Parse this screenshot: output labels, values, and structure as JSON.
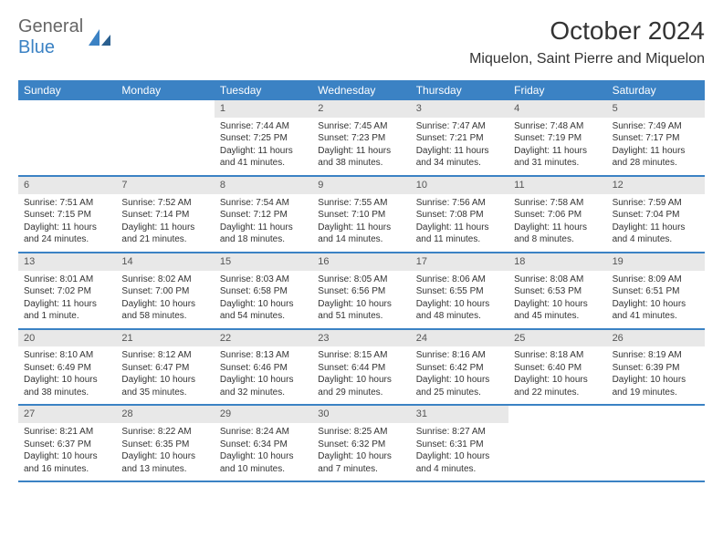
{
  "brand": {
    "part1": "General",
    "part2": "Blue",
    "accent_color": "#3b82c4"
  },
  "title": "October 2024",
  "location": "Miquelon, Saint Pierre and Miquelon",
  "header_bg": "#3b82c4",
  "day_bg": "#e8e8e8",
  "dayNames": [
    "Sunday",
    "Monday",
    "Tuesday",
    "Wednesday",
    "Thursday",
    "Friday",
    "Saturday"
  ],
  "weeks": [
    [
      null,
      null,
      {
        "n": "1",
        "sr": "Sunrise: 7:44 AM",
        "ss": "Sunset: 7:25 PM",
        "dl": "Daylight: 11 hours and 41 minutes."
      },
      {
        "n": "2",
        "sr": "Sunrise: 7:45 AM",
        "ss": "Sunset: 7:23 PM",
        "dl": "Daylight: 11 hours and 38 minutes."
      },
      {
        "n": "3",
        "sr": "Sunrise: 7:47 AM",
        "ss": "Sunset: 7:21 PM",
        "dl": "Daylight: 11 hours and 34 minutes."
      },
      {
        "n": "4",
        "sr": "Sunrise: 7:48 AM",
        "ss": "Sunset: 7:19 PM",
        "dl": "Daylight: 11 hours and 31 minutes."
      },
      {
        "n": "5",
        "sr": "Sunrise: 7:49 AM",
        "ss": "Sunset: 7:17 PM",
        "dl": "Daylight: 11 hours and 28 minutes."
      }
    ],
    [
      {
        "n": "6",
        "sr": "Sunrise: 7:51 AM",
        "ss": "Sunset: 7:15 PM",
        "dl": "Daylight: 11 hours and 24 minutes."
      },
      {
        "n": "7",
        "sr": "Sunrise: 7:52 AM",
        "ss": "Sunset: 7:14 PM",
        "dl": "Daylight: 11 hours and 21 minutes."
      },
      {
        "n": "8",
        "sr": "Sunrise: 7:54 AM",
        "ss": "Sunset: 7:12 PM",
        "dl": "Daylight: 11 hours and 18 minutes."
      },
      {
        "n": "9",
        "sr": "Sunrise: 7:55 AM",
        "ss": "Sunset: 7:10 PM",
        "dl": "Daylight: 11 hours and 14 minutes."
      },
      {
        "n": "10",
        "sr": "Sunrise: 7:56 AM",
        "ss": "Sunset: 7:08 PM",
        "dl": "Daylight: 11 hours and 11 minutes."
      },
      {
        "n": "11",
        "sr": "Sunrise: 7:58 AM",
        "ss": "Sunset: 7:06 PM",
        "dl": "Daylight: 11 hours and 8 minutes."
      },
      {
        "n": "12",
        "sr": "Sunrise: 7:59 AM",
        "ss": "Sunset: 7:04 PM",
        "dl": "Daylight: 11 hours and 4 minutes."
      }
    ],
    [
      {
        "n": "13",
        "sr": "Sunrise: 8:01 AM",
        "ss": "Sunset: 7:02 PM",
        "dl": "Daylight: 11 hours and 1 minute."
      },
      {
        "n": "14",
        "sr": "Sunrise: 8:02 AM",
        "ss": "Sunset: 7:00 PM",
        "dl": "Daylight: 10 hours and 58 minutes."
      },
      {
        "n": "15",
        "sr": "Sunrise: 8:03 AM",
        "ss": "Sunset: 6:58 PM",
        "dl": "Daylight: 10 hours and 54 minutes."
      },
      {
        "n": "16",
        "sr": "Sunrise: 8:05 AM",
        "ss": "Sunset: 6:56 PM",
        "dl": "Daylight: 10 hours and 51 minutes."
      },
      {
        "n": "17",
        "sr": "Sunrise: 8:06 AM",
        "ss": "Sunset: 6:55 PM",
        "dl": "Daylight: 10 hours and 48 minutes."
      },
      {
        "n": "18",
        "sr": "Sunrise: 8:08 AM",
        "ss": "Sunset: 6:53 PM",
        "dl": "Daylight: 10 hours and 45 minutes."
      },
      {
        "n": "19",
        "sr": "Sunrise: 8:09 AM",
        "ss": "Sunset: 6:51 PM",
        "dl": "Daylight: 10 hours and 41 minutes."
      }
    ],
    [
      {
        "n": "20",
        "sr": "Sunrise: 8:10 AM",
        "ss": "Sunset: 6:49 PM",
        "dl": "Daylight: 10 hours and 38 minutes."
      },
      {
        "n": "21",
        "sr": "Sunrise: 8:12 AM",
        "ss": "Sunset: 6:47 PM",
        "dl": "Daylight: 10 hours and 35 minutes."
      },
      {
        "n": "22",
        "sr": "Sunrise: 8:13 AM",
        "ss": "Sunset: 6:46 PM",
        "dl": "Daylight: 10 hours and 32 minutes."
      },
      {
        "n": "23",
        "sr": "Sunrise: 8:15 AM",
        "ss": "Sunset: 6:44 PM",
        "dl": "Daylight: 10 hours and 29 minutes."
      },
      {
        "n": "24",
        "sr": "Sunrise: 8:16 AM",
        "ss": "Sunset: 6:42 PM",
        "dl": "Daylight: 10 hours and 25 minutes."
      },
      {
        "n": "25",
        "sr": "Sunrise: 8:18 AM",
        "ss": "Sunset: 6:40 PM",
        "dl": "Daylight: 10 hours and 22 minutes."
      },
      {
        "n": "26",
        "sr": "Sunrise: 8:19 AM",
        "ss": "Sunset: 6:39 PM",
        "dl": "Daylight: 10 hours and 19 minutes."
      }
    ],
    [
      {
        "n": "27",
        "sr": "Sunrise: 8:21 AM",
        "ss": "Sunset: 6:37 PM",
        "dl": "Daylight: 10 hours and 16 minutes."
      },
      {
        "n": "28",
        "sr": "Sunrise: 8:22 AM",
        "ss": "Sunset: 6:35 PM",
        "dl": "Daylight: 10 hours and 13 minutes."
      },
      {
        "n": "29",
        "sr": "Sunrise: 8:24 AM",
        "ss": "Sunset: 6:34 PM",
        "dl": "Daylight: 10 hours and 10 minutes."
      },
      {
        "n": "30",
        "sr": "Sunrise: 8:25 AM",
        "ss": "Sunset: 6:32 PM",
        "dl": "Daylight: 10 hours and 7 minutes."
      },
      {
        "n": "31",
        "sr": "Sunrise: 8:27 AM",
        "ss": "Sunset: 6:31 PM",
        "dl": "Daylight: 10 hours and 4 minutes."
      },
      null,
      null
    ]
  ]
}
